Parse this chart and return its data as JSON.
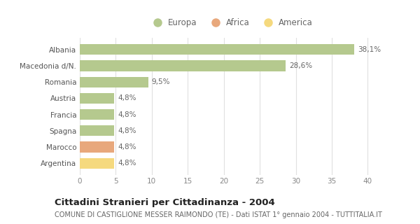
{
  "categories": [
    "Albania",
    "Macedonia d/N.",
    "Romania",
    "Austria",
    "Francia",
    "Spagna",
    "Marocco",
    "Argentina"
  ],
  "values": [
    38.1,
    28.6,
    9.5,
    4.8,
    4.8,
    4.8,
    4.8,
    4.8
  ],
  "labels": [
    "38,1%",
    "28,6%",
    "9,5%",
    "4,8%",
    "4,8%",
    "4,8%",
    "4,8%",
    "4,8%"
  ],
  "colors": [
    "#b5c98e",
    "#b5c98e",
    "#b5c98e",
    "#b5c98e",
    "#b5c98e",
    "#b5c98e",
    "#e8a87c",
    "#f5d97e"
  ],
  "legend": [
    {
      "label": "Europa",
      "color": "#b5c98e"
    },
    {
      "label": "Africa",
      "color": "#e8a87c"
    },
    {
      "label": "America",
      "color": "#f5d97e"
    }
  ],
  "xlim": [
    0,
    42
  ],
  "xticks": [
    0,
    5,
    10,
    15,
    20,
    25,
    30,
    35,
    40
  ],
  "title": "Cittadini Stranieri per Cittadinanza - 2004",
  "subtitle": "COMUNE DI CASTIGLIONE MESSER RAIMONDO (TE) - Dati ISTAT 1° gennaio 2004 - TUTTITALIA.IT",
  "background_color": "#ffffff",
  "grid_color": "#e0e0e0",
  "bar_height": 0.65,
  "title_fontsize": 9.5,
  "subtitle_fontsize": 7.0,
  "label_fontsize": 7.5,
  "tick_fontsize": 7.5,
  "legend_fontsize": 8.5
}
